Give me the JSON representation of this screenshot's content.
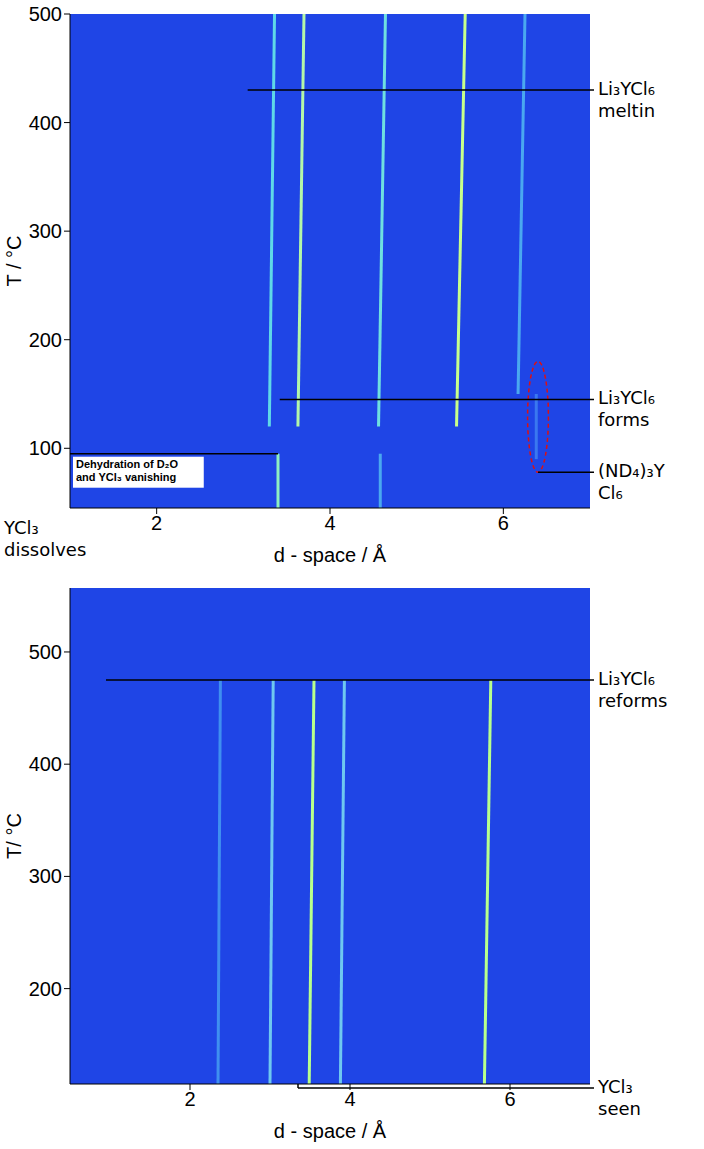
{
  "chart_data": [
    {
      "type": "heatmap",
      "xlabel": "d - space / Å",
      "ylabel": "T / °C",
      "xlim": [
        1,
        7
      ],
      "xticks": [
        2,
        4,
        6
      ],
      "ylim": [
        45,
        500
      ],
      "yticks": [
        100,
        200,
        300,
        400,
        500
      ],
      "grid": false,
      "series": [
        {
          "color": "#5fd8e8",
          "x": [
            3.3,
            3.36
          ],
          "values": [
            120,
            500
          ]
        },
        {
          "color": "#b4f7a8",
          "x": [
            3.63,
            3.7
          ],
          "values": [
            120,
            500
          ]
        },
        {
          "color": "#6fe0e0",
          "x": [
            4.56,
            4.64
          ],
          "values": [
            120,
            500
          ]
        },
        {
          "color": "#c8ff8a",
          "x": [
            5.46,
            5.56
          ],
          "values": [
            120,
            500
          ]
        },
        {
          "color": "#4aa8f0",
          "x": [
            6.17,
            6.25
          ],
          "values": [
            150,
            500
          ]
        },
        {
          "color": "#8ff0c0",
          "x": [
            3.4,
            3.4
          ],
          "values": [
            45,
            95
          ]
        },
        {
          "color": "#4aa8f0",
          "x": [
            4.58,
            4.58
          ],
          "values": [
            45,
            95
          ]
        },
        {
          "color": "#3a78f0",
          "x": [
            6.38,
            6.38
          ],
          "values": [
            90,
            150
          ]
        }
      ],
      "annotations": [
        {
          "text": "Li₃YCl₆ meltin",
          "y": 430,
          "x": [
            3.05,
            7
          ]
        },
        {
          "text": "Li₃YCl₆ forms",
          "y": 145,
          "x": [
            3.42,
            7
          ]
        },
        {
          "text": "(ND₄)₃YCl₆",
          "y": 78,
          "x": [
            6.4,
            7
          ]
        }
      ],
      "highlight": {
        "x": [
          6.28,
          6.52
        ],
        "y": [
          78,
          180
        ]
      },
      "inset_note": {
        "text": "Dehydration of D₂O and YCl₃ vanishing",
        "y": 95,
        "x": [
          1,
          3.4
        ]
      },
      "footnote": "YCl₃ dissolves"
    },
    {
      "type": "heatmap",
      "xlabel": "d - space / Å",
      "ylabel": "T/ °C",
      "xlim": [
        0.5,
        7
      ],
      "xticks": [
        2,
        4,
        6
      ],
      "ylim": [
        115,
        557
      ],
      "yticks": [
        200,
        300,
        400,
        500
      ],
      "grid": false,
      "series": [
        {
          "color": "#3f8ff0",
          "x": [
            2.35,
            2.38
          ],
          "values": [
            115,
            475
          ]
        },
        {
          "color": "#6fc8f0",
          "x": [
            3.0,
            3.04
          ],
          "values": [
            115,
            475
          ]
        },
        {
          "color": "#b8ff8c",
          "x": [
            3.49,
            3.55
          ],
          "values": [
            115,
            475
          ]
        },
        {
          "color": "#6fc8f0",
          "x": [
            3.88,
            3.93
          ],
          "values": [
            115,
            475
          ]
        },
        {
          "color": "#b8ff8c",
          "x": [
            5.68,
            5.76
          ],
          "values": [
            115,
            475
          ]
        }
      ],
      "annotations": [
        {
          "text": "Li₃YCl₆ reforms",
          "y": 475,
          "x": [
            0.95,
            7
          ]
        },
        {
          "text": "YCl₃ seen",
          "x": [
            3.35,
            7
          ]
        }
      ]
    }
  ]
}
